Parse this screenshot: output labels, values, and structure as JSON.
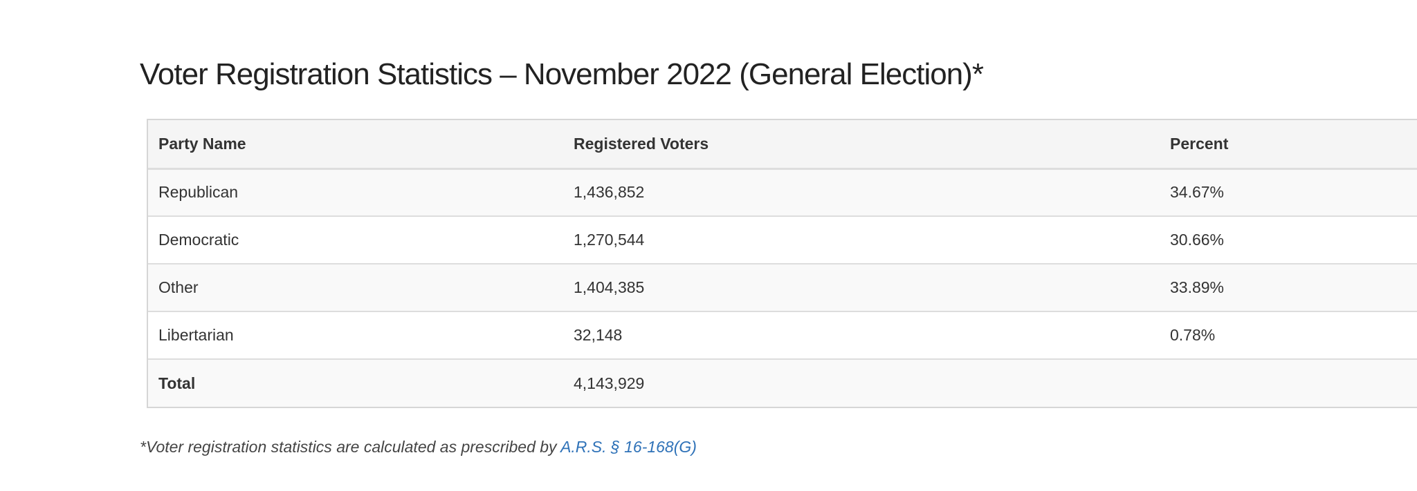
{
  "page": {
    "title": "Voter Registration Statistics – November 2022 (General Election)*"
  },
  "table": {
    "headers": {
      "party": "Party Name",
      "voters": "Registered Voters",
      "percent": "Percent"
    },
    "rows": [
      {
        "party": "Republican",
        "voters": "1,436,852",
        "percent": "34.67%"
      },
      {
        "party": "Democratic",
        "voters": "1,270,544",
        "percent": "30.66%"
      },
      {
        "party": "Other",
        "voters": "1,404,385",
        "percent": "33.89%"
      },
      {
        "party": "Libertarian",
        "voters": "32,148",
        "percent": "0.78%"
      }
    ],
    "total": {
      "label": "Total",
      "voters": "4,143,929",
      "percent": ""
    }
  },
  "footnote": {
    "text": "*Voter registration statistics are calculated as prescribed by ",
    "link_text": "A.R.S. § 16-168(G)"
  },
  "colors": {
    "link": "#2f72b8",
    "header_bg": "#f5f5f5",
    "stripe_bg": "#f9f9f9",
    "border": "#dddddd"
  }
}
